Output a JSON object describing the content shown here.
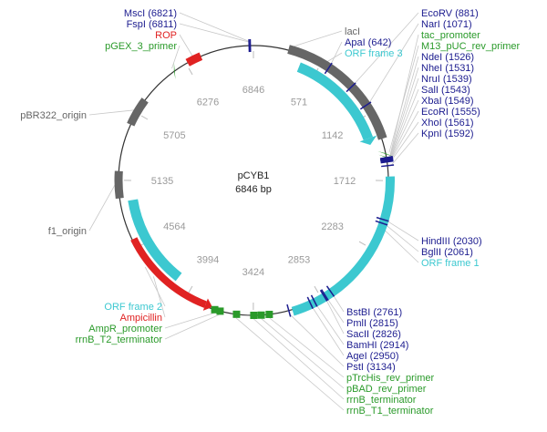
{
  "plasmid": {
    "name": "pCYB1",
    "size_label": "6846 bp",
    "length": 6846
  },
  "colors": {
    "backbone": "#333333",
    "tick_label": "#9a9a9a",
    "site": "#1c1c8f",
    "green": "#2a9a2a",
    "red": "#e02222",
    "cyan": "#3cc8d0",
    "gray": "#666666",
    "leader": "#c8c8c8"
  },
  "ticks": [
    "6846",
    "571",
    "1142",
    "1712",
    "2283",
    "2853",
    "3424",
    "3994",
    "4564",
    "5135",
    "5705",
    "6276"
  ],
  "features": [
    {
      "id": "lacI",
      "name": "lacI",
      "type": "gene",
      "start": 285,
      "end": 1370,
      "color": "gray",
      "arrow": false
    },
    {
      "id": "orf3",
      "name": "ORF frame 3",
      "type": "orf",
      "start": 415,
      "end": 1330,
      "color": "cyan",
      "arrow": true
    },
    {
      "id": "orf1",
      "name": "ORF frame 1",
      "type": "orf",
      "start": 1680,
      "end": 3105,
      "color": "cyan",
      "arrow": false
    },
    {
      "id": "orf2",
      "name": "ORF frame 2",
      "type": "orf",
      "start": 4140,
      "end": 4960,
      "color": "cyan",
      "arrow": false
    },
    {
      "id": "amp",
      "name": "Ampicillin",
      "type": "gene",
      "start": 3825,
      "end": 4640,
      "color": "red",
      "arrow": true
    },
    {
      "id": "rop",
      "name": "ROP",
      "type": "gene",
      "start": 6290,
      "end": 6410,
      "color": "red",
      "arrow": false
    },
    {
      "id": "pbr",
      "name": "pBR322_origin",
      "type": "origin",
      "start": 5600,
      "end": 5830,
      "color": "gray",
      "arrow": false
    },
    {
      "id": "f1",
      "name": "f1_origin",
      "type": "origin",
      "start": 4990,
      "end": 5210,
      "color": "gray",
      "arrow": false
    }
  ],
  "small_marks": [
    {
      "name": "tac_promoter",
      "pos": 1520,
      "color": "green",
      "kind": "arrow"
    },
    {
      "name": "pGEX_3_primer",
      "pos": 6160,
      "color": "green",
      "kind": "arrow"
    },
    {
      "name": "M13_pUC_rev_primer",
      "pos": 1490,
      "color": "green",
      "kind": "arrow"
    },
    {
      "name": "pTrcHis_rev_primer",
      "pos": 3295,
      "color": "green",
      "kind": "block"
    },
    {
      "name": "pBAD_rev_primer",
      "pos": 3360,
      "color": "green",
      "kind": "block"
    },
    {
      "name": "rrnB_terminator",
      "pos": 3420,
      "color": "green",
      "kind": "block"
    },
    {
      "name": "rrnB_T1_terminator",
      "pos": 3560,
      "color": "green",
      "kind": "block"
    },
    {
      "name": "AmpR_promoter",
      "pos": 3740,
      "color": "green",
      "kind": "block"
    },
    {
      "name": "rrnB_T2_terminator",
      "pos": 3695,
      "color": "green",
      "kind": "block"
    }
  ],
  "sites": [
    {
      "label": "EcoRV (881)",
      "pos": 881
    },
    {
      "label": "NarI (1071)",
      "pos": 1071
    },
    {
      "label": "NdeI (1526)",
      "pos": 1526
    },
    {
      "label": "NheI (1531)",
      "pos": 1531
    },
    {
      "label": "NruI (1539)",
      "pos": 1539
    },
    {
      "label": "SalI (1543)",
      "pos": 1543
    },
    {
      "label": "XbaI (1549)",
      "pos": 1549
    },
    {
      "label": "EcoRI (1555)",
      "pos": 1555
    },
    {
      "label": "XhoI (1561)",
      "pos": 1561
    },
    {
      "label": "KpnI (1592)",
      "pos": 1592
    },
    {
      "label": "HindIII (2030)",
      "pos": 2030
    },
    {
      "label": "BglII (2061)",
      "pos": 2061
    },
    {
      "label": "BstBI (2761)",
      "pos": 2761
    },
    {
      "label": "PmlI (2815)",
      "pos": 2815
    },
    {
      "label": "SacII (2826)",
      "pos": 2826
    },
    {
      "label": "BamHI (2914)",
      "pos": 2914
    },
    {
      "label": "AgeI (2950)",
      "pos": 2950
    },
    {
      "label": "PstI (3134)",
      "pos": 3134
    },
    {
      "label": "ApaI (642)",
      "pos": 642
    },
    {
      "label": "MscI (6821)",
      "pos": 6821
    },
    {
      "label": "FspI (6811)",
      "pos": 6811
    }
  ],
  "labels": {
    "top_left": [
      {
        "text": "MscI (6821)",
        "color": "site",
        "pos": 6821
      },
      {
        "text": "FspI (6811)",
        "color": "site",
        "pos": 6811
      },
      {
        "text": "ROP",
        "color": "red",
        "pos": 6350
      },
      {
        "text": "pGEX_3_primer",
        "color": "green",
        "pos": 6160
      }
    ],
    "top_mid": [
      {
        "text": "lacI",
        "color": "gray",
        "pos": 300
      },
      {
        "text": "ApaI (642)",
        "color": "site",
        "pos": 642
      },
      {
        "text": "ORF frame 3",
        "color": "cyan",
        "pos": 600
      }
    ],
    "right_top": [
      {
        "text": "EcoRV (881)",
        "color": "site",
        "pos": 881
      },
      {
        "text": "NarI (1071)",
        "color": "site",
        "pos": 1071
      },
      {
        "text": "tac_promoter",
        "color": "green",
        "pos": 1520
      },
      {
        "text": "M13_pUC_rev_primer",
        "color": "green",
        "pos": 1490
      },
      {
        "text": "NdeI (1526)",
        "color": "site",
        "pos": 1526
      },
      {
        "text": "NheI (1531)",
        "color": "site",
        "pos": 1531
      },
      {
        "text": "NruI (1539)",
        "color": "site",
        "pos": 1539
      },
      {
        "text": "SalI (1543)",
        "color": "site",
        "pos": 1543
      },
      {
        "text": "XbaI (1549)",
        "color": "site",
        "pos": 1549
      },
      {
        "text": "EcoRI (1555)",
        "color": "site",
        "pos": 1555
      },
      {
        "text": "XhoI (1561)",
        "color": "site",
        "pos": 1561
      },
      {
        "text": "KpnI (1592)",
        "color": "site",
        "pos": 1592
      }
    ],
    "right_mid": [
      {
        "text": "HindIII (2030)",
        "color": "site",
        "pos": 2030
      },
      {
        "text": "BglII (2061)",
        "color": "site",
        "pos": 2061
      },
      {
        "text": "ORF frame 1",
        "color": "cyan",
        "pos": 2100
      }
    ],
    "bottom_right": [
      {
        "text": "BstBI (2761)",
        "color": "site",
        "pos": 2761
      },
      {
        "text": "PmlI (2815)",
        "color": "site",
        "pos": 2815
      },
      {
        "text": "SacII (2826)",
        "color": "site",
        "pos": 2826
      },
      {
        "text": "BamHI (2914)",
        "color": "site",
        "pos": 2914
      },
      {
        "text": "AgeI (2950)",
        "color": "site",
        "pos": 2950
      },
      {
        "text": "PstI (3134)",
        "color": "site",
        "pos": 3134
      },
      {
        "text": "pTrcHis_rev_primer",
        "color": "green",
        "pos": 3295
      },
      {
        "text": "pBAD_rev_primer",
        "color": "green",
        "pos": 3360
      },
      {
        "text": "rrnB_terminator",
        "color": "green",
        "pos": 3420
      },
      {
        "text": "rrnB_T1_terminator",
        "color": "green",
        "pos": 3560
      }
    ],
    "bottom_left": [
      {
        "text": "ORF frame 2",
        "color": "cyan",
        "pos": 4400
      },
      {
        "text": "Ampicillin",
        "color": "red",
        "pos": 4300
      },
      {
        "text": "AmpR_promoter",
        "color": "green",
        "pos": 3740
      },
      {
        "text": "rrnB_T2_terminator",
        "color": "green",
        "pos": 3695
      }
    ],
    "left": [
      {
        "text": "pBR322_origin",
        "color": "gray",
        "pos": 5715
      },
      {
        "text": "f1_origin",
        "color": "gray",
        "pos": 5100
      }
    ]
  }
}
